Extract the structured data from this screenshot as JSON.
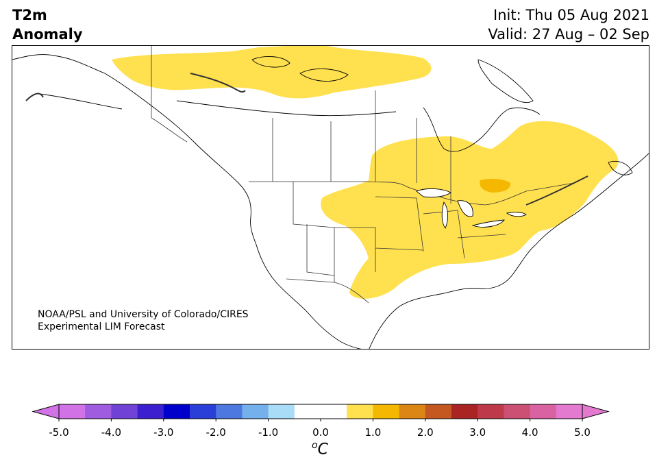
{
  "title": {
    "left_line1": "T2m",
    "left_line2": "Anomaly",
    "init": "Init: Thu 05 Aug 2021",
    "valid": "Valid: 27 Aug – 02 Sep"
  },
  "credit": {
    "line1": "NOAA/PSL and University of Colorado/CIRES",
    "line2": "Experimental LIM Forecast"
  },
  "colorbar": {
    "unit_sup": "o",
    "unit": "C",
    "tick_labels": [
      "-5.0",
      "-4.0",
      "-3.0",
      "-2.0",
      "-1.0",
      "0.0",
      "1.0",
      "2.0",
      "3.0",
      "4.0",
      "5.0"
    ],
    "min": -5.0,
    "max": 5.0,
    "bin_width": 0.5,
    "colors": [
      "#d173e6",
      "#a05ce0",
      "#7043d6",
      "#3c20cf",
      "#0000cc",
      "#2a3fd8",
      "#4c78e0",
      "#74b1ec",
      "#a9dcf7",
      "#ffffff",
      "#ffffff",
      "#ffe04f",
      "#f4b800",
      "#dc8616",
      "#c45820",
      "#aa2424",
      "#be3a4a",
      "#cc4f74",
      "#d963a2",
      "#e37ad0"
    ],
    "under_color": "#d173e6",
    "over_color": "#e37ad0"
  },
  "map": {
    "region": "North America",
    "anomaly_colors": {
      "weak_warm": "#ffe04f",
      "moderate_warm": "#f4b800"
    }
  }
}
